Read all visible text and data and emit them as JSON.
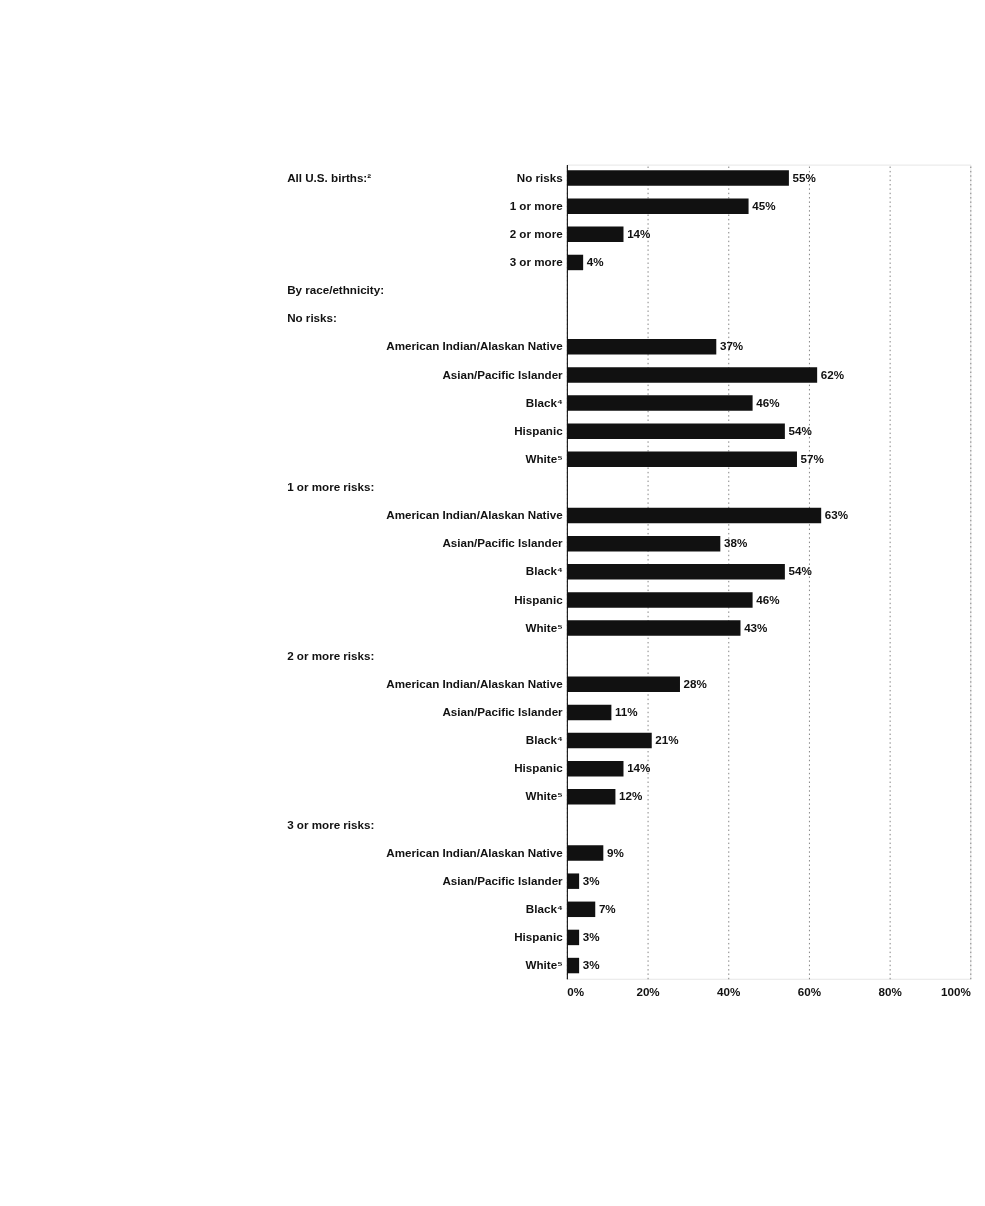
{
  "chart_data": {
    "type": "bar",
    "orientation": "horizontal",
    "categories": [
      "No risks",
      "1 or more",
      "2 or more",
      "3 or more",
      null,
      null,
      "American Indian/Alaskan Native",
      "Asian/Pacific Islander",
      "Black⁴",
      "Hispanic",
      "White⁵",
      null,
      "American Indian/Alaskan Native",
      "Asian/Pacific Islander",
      "Black⁴",
      "Hispanic",
      "White⁵",
      null,
      "American Indian/Alaskan Native",
      "Asian/Pacific Islander",
      "Black⁴",
      "Hispanic",
      "White⁵",
      null,
      "American Indian/Alaskan Native",
      "Asian/Pacific Islander",
      "Black⁴",
      "Hispanic",
      "White⁵"
    ],
    "values": [
      55,
      45,
      14,
      4,
      null,
      null,
      37,
      62,
      46,
      54,
      57,
      null,
      63,
      38,
      54,
      46,
      43,
      null,
      28,
      11,
      21,
      14,
      12,
      null,
      9,
      3,
      7,
      3,
      3
    ],
    "value_labels": [
      "55%",
      "45%",
      "14%",
      "4%",
      null,
      null,
      "37%",
      "62%",
      "46%",
      "54%",
      "57%",
      null,
      "63%",
      "38%",
      "54%",
      "46%",
      "43%",
      null,
      "28%",
      "11%",
      "21%",
      "14%",
      "12%",
      null,
      "9%",
      "3%",
      "7%",
      "3%",
      "3%"
    ],
    "color": "#111111",
    "xlim": [
      0,
      100
    ],
    "xticks": [
      {
        "value": 0,
        "label": "0%"
      },
      {
        "value": 20,
        "label": "20%"
      },
      {
        "value": 40,
        "label": "40%"
      },
      {
        "value": 60,
        "label": "60%"
      },
      {
        "value": 80,
        "label": "80%"
      },
      {
        "value": 100,
        "label": "100%"
      }
    ],
    "grid": "x",
    "annotations": [
      "All U.S. births:²",
      "By race/ethnicity:",
      "No risks:",
      "1 or more risks:",
      "2 or more risks:",
      "3 or more risks:"
    ]
  }
}
